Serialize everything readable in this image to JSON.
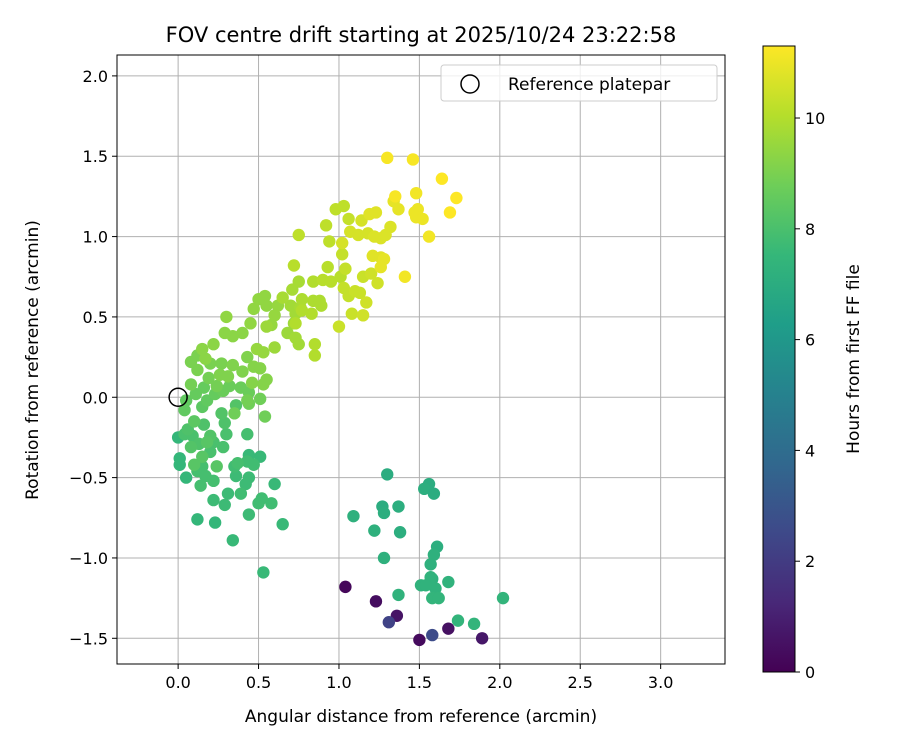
{
  "chart_data": {
    "type": "scatter",
    "title": "FOV centre drift starting at 2025/10/24 23:22:58",
    "xlabel": "Angular distance from reference (arcmin)",
    "ylabel": "Rotation from reference (arcmin)",
    "xlim": [
      -0.38,
      3.4
    ],
    "ylim": [
      -1.66,
      2.13
    ],
    "xticks": [
      0.0,
      0.5,
      1.0,
      1.5,
      2.0,
      2.5,
      3.0
    ],
    "xtick_labels": [
      "0.0",
      "0.5",
      "1.0",
      "1.5",
      "2.0",
      "2.5",
      "3.0"
    ],
    "yticks": [
      -1.5,
      -1.0,
      -0.5,
      0.0,
      0.5,
      1.0,
      1.5,
      2.0
    ],
    "ytick_labels": [
      "−1.5",
      "−1.0",
      "−0.5",
      "0.0",
      "0.5",
      "1.0",
      "1.5",
      "2.0"
    ],
    "grid": true,
    "legend": {
      "position": "top-right",
      "label": "Reference platepar"
    },
    "reference_point": {
      "x": 0.0,
      "y": 0.0
    },
    "colorbar": {
      "label": "Hours from first FF file",
      "range": [
        0,
        11.3
      ],
      "ticks": [
        0,
        2,
        4,
        6,
        8,
        10
      ],
      "tick_labels": [
        "0",
        "2",
        "4",
        "6",
        "8",
        "10"
      ],
      "colormap": "viridis",
      "colors": [
        "#440154",
        "#482878",
        "#3e4989",
        "#31688e",
        "#26828e",
        "#1f9e89",
        "#35b779",
        "#6ece58",
        "#b5de2b",
        "#fde725"
      ]
    },
    "points": [
      [
        1.04,
        -1.18,
        0.2
      ],
      [
        1.23,
        -1.27,
        0.4
      ],
      [
        1.36,
        -1.36,
        0.6
      ],
      [
        1.5,
        -1.51,
        0.3
      ],
      [
        1.68,
        -1.44,
        0.5
      ],
      [
        1.89,
        -1.5,
        0.7
      ],
      [
        1.31,
        -1.4,
        2.3
      ],
      [
        1.58,
        -1.48,
        2.6
      ],
      [
        1.3,
        -0.48,
        7.0
      ],
      [
        1.56,
        -0.54,
        7.0
      ],
      [
        1.53,
        -0.57,
        7.1
      ],
      [
        1.59,
        -0.6,
        7.0
      ],
      [
        1.27,
        -0.68,
        7.0
      ],
      [
        1.37,
        -0.68,
        7.1
      ],
      [
        1.28,
        -0.72,
        7.1
      ],
      [
        1.09,
        -0.74,
        7.2
      ],
      [
        1.22,
        -0.83,
        7.2
      ],
      [
        1.38,
        -0.84,
        7.1
      ],
      [
        1.61,
        -0.93,
        7.1
      ],
      [
        1.59,
        -0.98,
        7.2
      ],
      [
        1.28,
        -1.0,
        7.2
      ],
      [
        1.57,
        -1.04,
        7.2
      ],
      [
        1.58,
        -1.13,
        7.2
      ],
      [
        1.57,
        -1.12,
        7.3
      ],
      [
        1.51,
        -1.17,
        7.3
      ],
      [
        1.6,
        -1.19,
        7.3
      ],
      [
        1.54,
        -1.17,
        7.3
      ],
      [
        1.68,
        -1.15,
        7.3
      ],
      [
        1.37,
        -1.23,
        7.3
      ],
      [
        1.58,
        -1.25,
        7.4
      ],
      [
        1.62,
        -1.25,
        7.4
      ],
      [
        2.02,
        -1.25,
        7.4
      ],
      [
        1.74,
        -1.39,
        7.4
      ],
      [
        1.84,
        -1.41,
        7.4
      ],
      [
        0.0,
        -0.25,
        7.5
      ],
      [
        0.01,
        -0.38,
        7.5
      ],
      [
        0.01,
        -0.42,
        7.5
      ],
      [
        0.05,
        -0.5,
        7.5
      ],
      [
        0.12,
        -0.76,
        7.5
      ],
      [
        0.23,
        -0.78,
        7.5
      ],
      [
        0.34,
        -0.89,
        7.6
      ],
      [
        0.53,
        -1.09,
        7.6
      ],
      [
        0.65,
        -0.79,
        7.6
      ],
      [
        0.6,
        -0.54,
        7.6
      ],
      [
        0.51,
        -0.37,
        7.6
      ],
      [
        0.44,
        -0.36,
        7.6
      ],
      [
        0.44,
        -0.5,
        7.7
      ],
      [
        0.42,
        -0.54,
        7.7
      ],
      [
        0.36,
        -0.49,
        7.7
      ],
      [
        0.31,
        -0.6,
        7.7
      ],
      [
        0.22,
        -0.64,
        7.7
      ],
      [
        0.29,
        -0.67,
        7.7
      ],
      [
        0.44,
        -0.73,
        7.7
      ],
      [
        0.52,
        -0.63,
        7.8
      ],
      [
        0.5,
        -0.66,
        7.8
      ],
      [
        0.58,
        -0.66,
        7.8
      ],
      [
        0.39,
        -0.6,
        7.8
      ],
      [
        0.35,
        -0.43,
        7.8
      ],
      [
        0.43,
        -0.4,
        7.8
      ],
      [
        0.47,
        -0.42,
        7.8
      ],
      [
        0.37,
        -0.41,
        7.9
      ],
      [
        0.15,
        -0.43,
        7.9
      ],
      [
        0.12,
        -0.46,
        7.9
      ],
      [
        0.17,
        -0.49,
        7.9
      ],
      [
        0.22,
        -0.52,
        7.9
      ],
      [
        0.14,
        -0.55,
        7.9
      ],
      [
        0.43,
        -0.23,
        7.9
      ],
      [
        0.3,
        -0.23,
        8.0
      ],
      [
        0.28,
        -0.31,
        8.0
      ],
      [
        0.22,
        -0.28,
        8.0
      ],
      [
        0.2,
        -0.34,
        8.0
      ],
      [
        0.09,
        -0.24,
        8.0
      ],
      [
        0.04,
        -0.23,
        8.0
      ],
      [
        0.06,
        -0.2,
        8.1
      ],
      [
        0.16,
        -0.17,
        8.1
      ],
      [
        0.13,
        -0.29,
        8.1
      ],
      [
        0.29,
        -0.16,
        8.1
      ],
      [
        0.36,
        -0.05,
        8.2
      ],
      [
        0.27,
        -0.1,
        8.2
      ],
      [
        0.2,
        -0.24,
        8.2
      ],
      [
        0.08,
        -0.31,
        8.2
      ],
      [
        0.15,
        -0.37,
        8.3
      ],
      [
        0.1,
        -0.42,
        8.3
      ],
      [
        0.24,
        -0.43,
        8.3
      ],
      [
        0.18,
        -0.28,
        8.3
      ],
      [
        0.1,
        -0.15,
        8.4
      ],
      [
        0.15,
        -0.06,
        8.4
      ],
      [
        0.18,
        -0.02,
        8.5
      ],
      [
        0.05,
        -0.02,
        8.5
      ],
      [
        0.04,
        -0.08,
        8.5
      ],
      [
        0.11,
        0.02,
        8.6
      ],
      [
        0.16,
        0.06,
        8.6
      ],
      [
        0.23,
        0.02,
        8.6
      ],
      [
        0.28,
        0.04,
        8.7
      ],
      [
        0.32,
        0.07,
        8.7
      ],
      [
        0.39,
        0.06,
        8.7
      ],
      [
        0.44,
        0.03,
        8.7
      ],
      [
        0.35,
        -0.1,
        8.8
      ],
      [
        0.44,
        -0.04,
        8.8
      ],
      [
        0.51,
        -0.01,
        8.8
      ],
      [
        0.54,
        -0.12,
        8.8
      ],
      [
        0.43,
        -0.02,
        8.9
      ],
      [
        0.24,
        0.07,
        8.9
      ],
      [
        0.19,
        0.12,
        8.9
      ],
      [
        0.08,
        0.08,
        8.9
      ],
      [
        0.12,
        0.17,
        9.0
      ],
      [
        0.12,
        0.26,
        9.0
      ],
      [
        0.08,
        0.22,
        9.0
      ],
      [
        0.2,
        0.21,
        9.0
      ],
      [
        0.27,
        0.21,
        9.0
      ],
      [
        0.26,
        0.14,
        9.1
      ],
      [
        0.31,
        0.13,
        9.1
      ],
      [
        0.34,
        0.2,
        9.1
      ],
      [
        0.4,
        0.16,
        9.1
      ],
      [
        0.43,
        0.25,
        9.1
      ],
      [
        0.47,
        0.19,
        9.2
      ],
      [
        0.46,
        0.09,
        9.2
      ],
      [
        0.53,
        0.08,
        9.2
      ],
      [
        0.51,
        0.18,
        9.2
      ],
      [
        0.55,
        0.11,
        9.2
      ],
      [
        0.4,
        0.4,
        9.3
      ],
      [
        0.34,
        0.38,
        9.3
      ],
      [
        0.29,
        0.4,
        9.3
      ],
      [
        0.22,
        0.33,
        9.3
      ],
      [
        0.17,
        0.24,
        9.3
      ],
      [
        0.15,
        0.3,
        9.3
      ],
      [
        0.3,
        0.5,
        9.4
      ],
      [
        0.45,
        0.46,
        9.4
      ],
      [
        0.47,
        0.55,
        9.4
      ],
      [
        0.55,
        0.57,
        9.4
      ],
      [
        0.54,
        0.63,
        9.4
      ],
      [
        0.5,
        0.61,
        9.4
      ],
      [
        0.62,
        0.57,
        9.5
      ],
      [
        0.58,
        0.45,
        9.5
      ],
      [
        0.6,
        0.51,
        9.5
      ],
      [
        0.49,
        0.3,
        9.5
      ],
      [
        0.53,
        0.28,
        9.5
      ],
      [
        0.55,
        0.44,
        9.6
      ],
      [
        0.6,
        0.31,
        9.6
      ],
      [
        0.68,
        0.4,
        9.6
      ],
      [
        0.72,
        0.46,
        9.6
      ],
      [
        0.73,
        0.37,
        9.7
      ],
      [
        0.75,
        0.33,
        9.7
      ],
      [
        0.73,
        0.52,
        9.7
      ],
      [
        0.7,
        0.57,
        9.7
      ],
      [
        0.65,
        0.62,
        9.8
      ],
      [
        0.71,
        0.67,
        9.8
      ],
      [
        0.75,
        0.72,
        9.8
      ],
      [
        0.76,
        0.56,
        9.8
      ],
      [
        0.77,
        0.61,
        9.9
      ],
      [
        0.84,
        0.6,
        9.9
      ],
      [
        0.88,
        0.6,
        9.9
      ],
      [
        0.89,
        0.57,
        9.9
      ],
      [
        0.83,
        0.52,
        10.0
      ],
      [
        0.85,
        0.33,
        10.0
      ],
      [
        0.85,
        0.26,
        10.0
      ],
      [
        0.73,
        0.46,
        10.0
      ],
      [
        0.77,
        0.54,
        10.0
      ],
      [
        0.84,
        0.72,
        10.0
      ],
      [
        0.9,
        0.73,
        10.1
      ],
      [
        0.95,
        0.72,
        10.1
      ],
      [
        0.93,
        0.81,
        10.1
      ],
      [
        1.01,
        0.75,
        10.1
      ],
      [
        0.72,
        0.82,
        10.1
      ],
      [
        0.75,
        1.01,
        10.2
      ],
      [
        0.92,
        1.07,
        10.2
      ],
      [
        0.94,
        0.97,
        10.2
      ],
      [
        0.98,
        1.17,
        10.2
      ],
      [
        1.03,
        1.19,
        10.2
      ],
      [
        1.06,
        1.11,
        10.3
      ],
      [
        1.02,
        0.89,
        10.3
      ],
      [
        1.04,
        0.8,
        10.3
      ],
      [
        1.03,
        0.68,
        10.3
      ],
      [
        1.06,
        0.63,
        10.3
      ],
      [
        1.0,
        0.44,
        10.4
      ],
      [
        1.08,
        0.52,
        10.4
      ],
      [
        1.1,
        0.66,
        10.4
      ],
      [
        1.13,
        0.65,
        10.4
      ],
      [
        1.15,
        0.75,
        10.4
      ],
      [
        1.2,
        0.77,
        10.5
      ],
      [
        1.24,
        0.71,
        10.5
      ],
      [
        1.17,
        0.59,
        10.5
      ],
      [
        1.15,
        0.51,
        10.5
      ],
      [
        1.02,
        0.96,
        10.6
      ],
      [
        1.07,
        1.03,
        10.6
      ],
      [
        1.12,
        1.01,
        10.6
      ],
      [
        1.18,
        1.02,
        10.6
      ],
      [
        1.14,
        1.1,
        10.6
      ],
      [
        1.22,
        1.0,
        10.7
      ],
      [
        1.26,
        0.99,
        10.7
      ],
      [
        1.29,
        1.01,
        10.7
      ],
      [
        1.32,
        1.06,
        10.7
      ],
      [
        1.19,
        1.14,
        10.8
      ],
      [
        1.23,
        1.15,
        10.8
      ],
      [
        1.21,
        0.88,
        10.8
      ],
      [
        1.26,
        0.87,
        10.8
      ],
      [
        1.28,
        0.86,
        10.9
      ],
      [
        1.26,
        0.81,
        10.9
      ],
      [
        1.34,
        1.22,
        10.9
      ],
      [
        1.37,
        1.17,
        10.9
      ],
      [
        1.47,
        1.15,
        11.0
      ],
      [
        1.49,
        1.17,
        11.0
      ],
      [
        1.48,
        1.12,
        11.0
      ],
      [
        1.52,
        1.11,
        11.0
      ],
      [
        1.48,
        1.27,
        11.1
      ],
      [
        1.56,
        1.0,
        11.1
      ],
      [
        1.41,
        0.75,
        11.1
      ],
      [
        1.3,
        1.49,
        11.2
      ],
      [
        1.46,
        1.48,
        11.2
      ],
      [
        1.35,
        1.25,
        11.2
      ],
      [
        1.64,
        1.36,
        11.3
      ],
      [
        1.69,
        1.15,
        11.3
      ],
      [
        1.73,
        1.24,
        11.3
      ]
    ]
  }
}
